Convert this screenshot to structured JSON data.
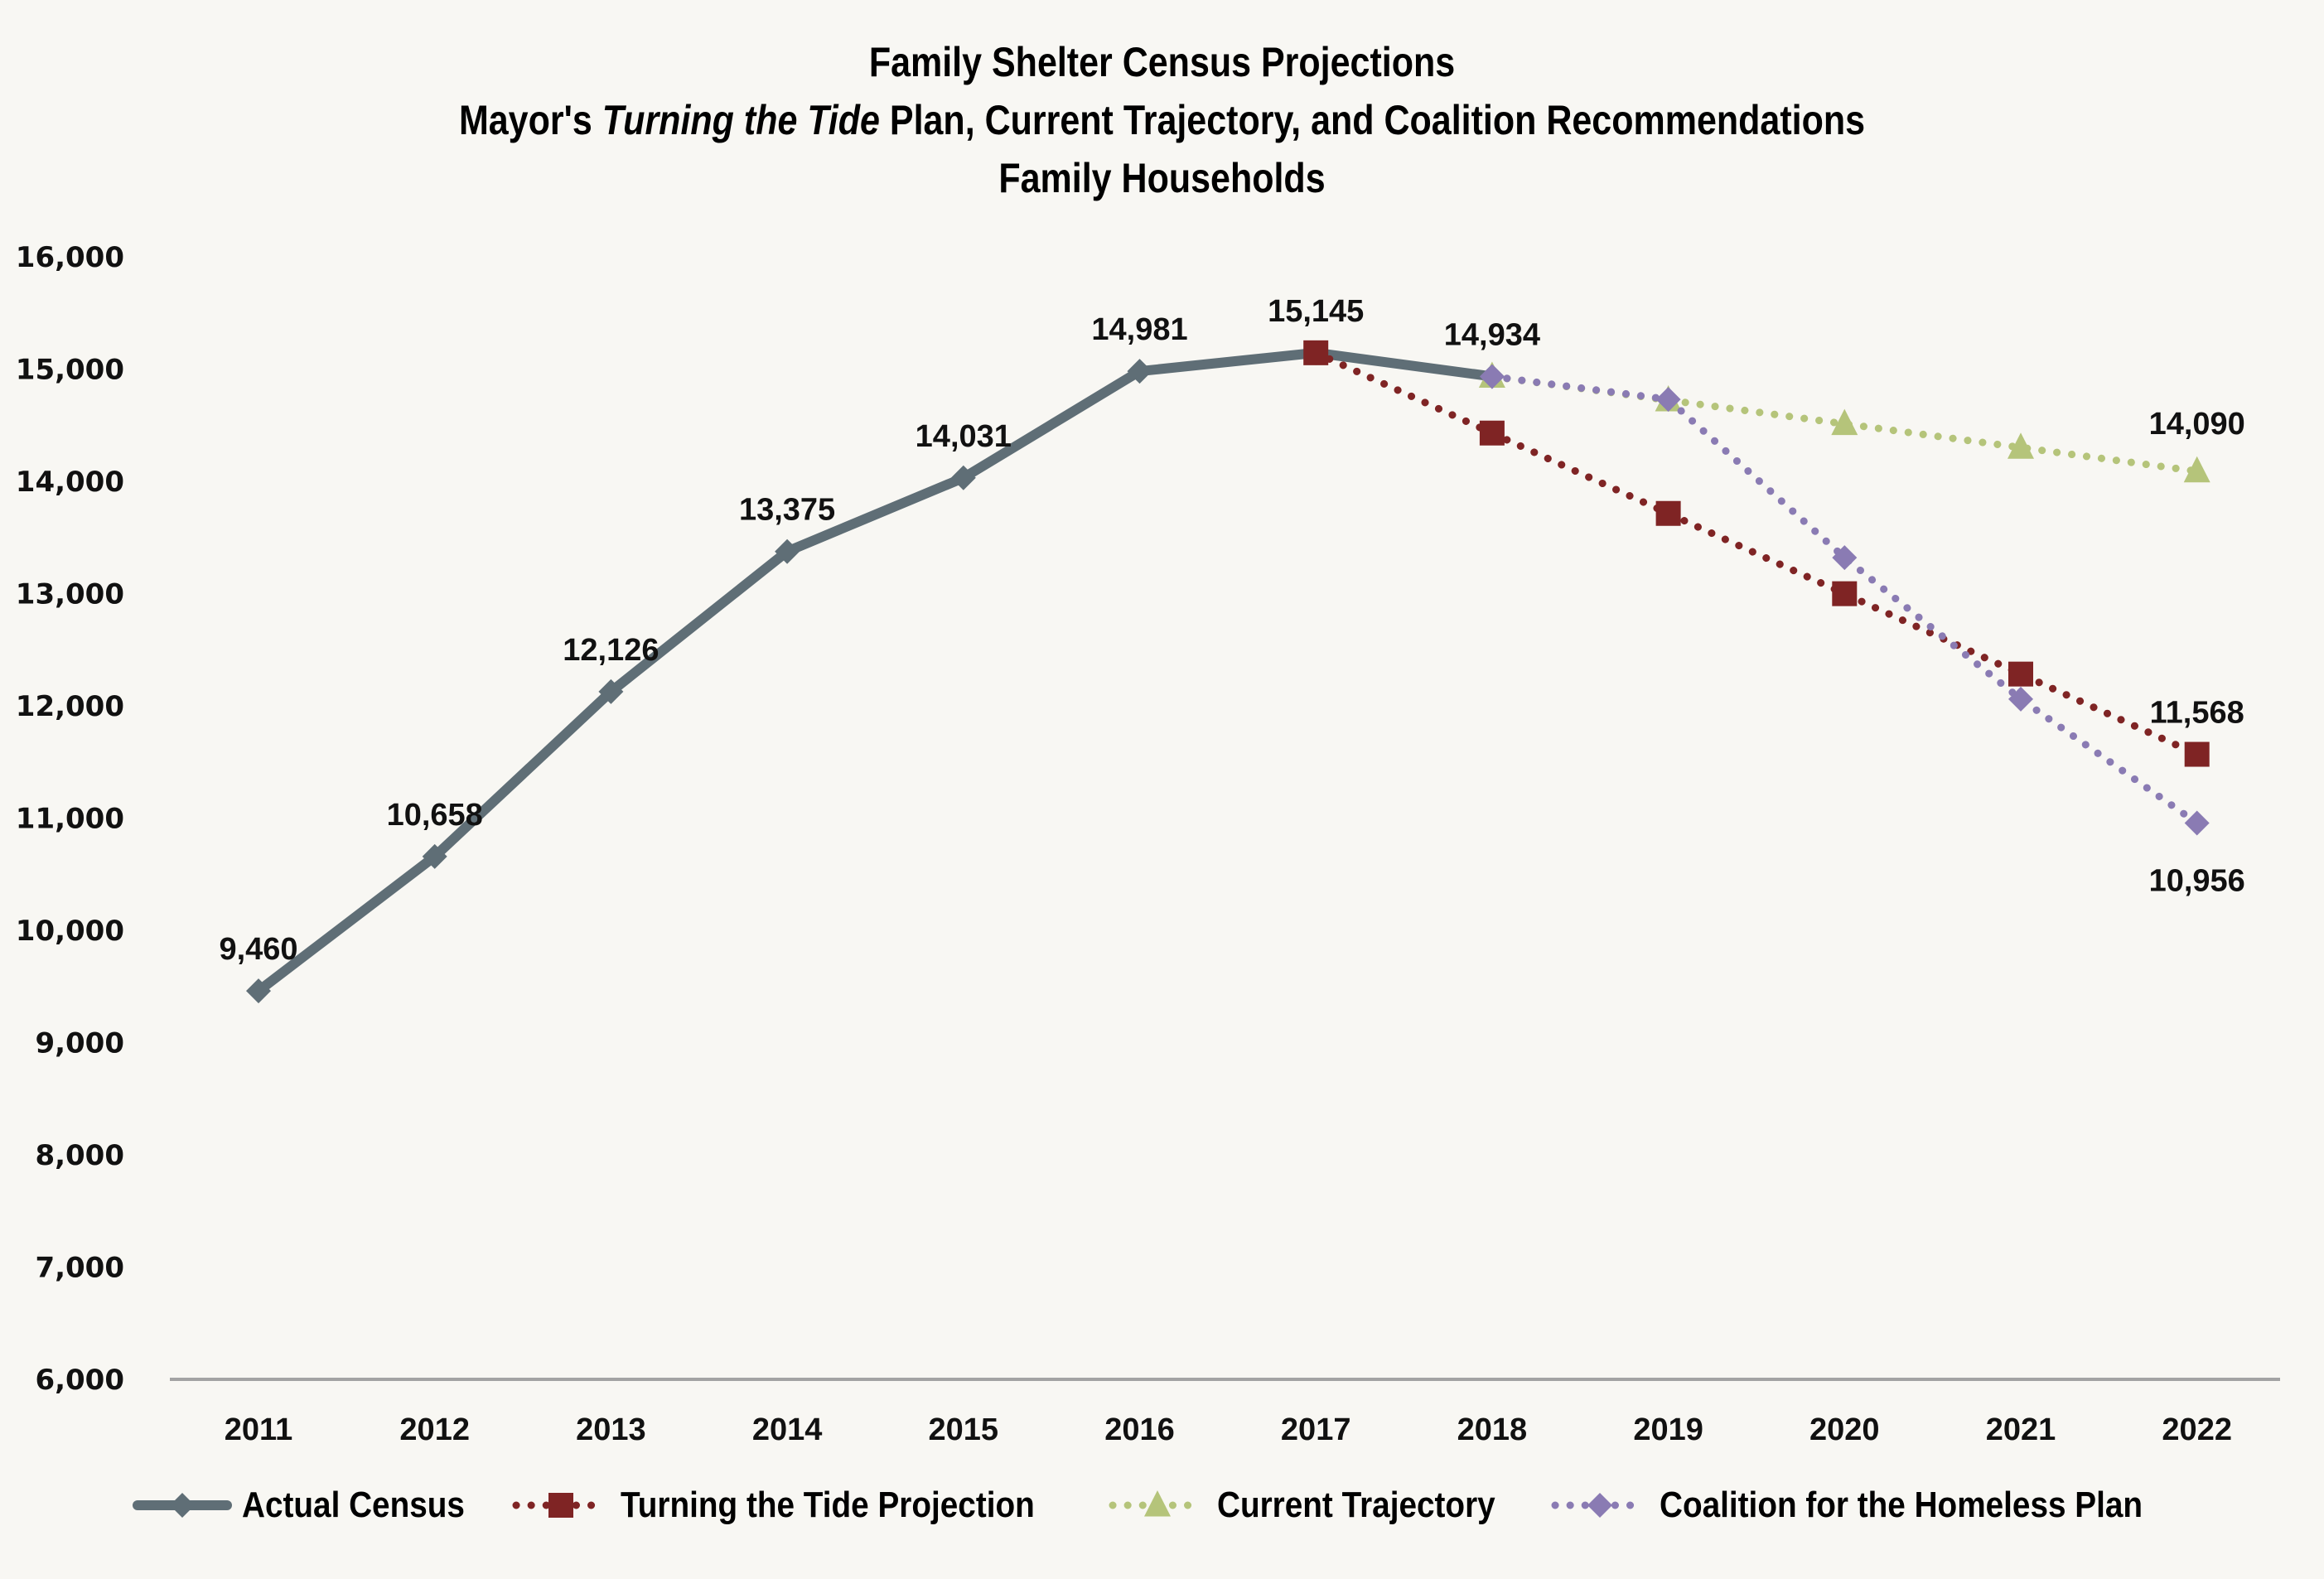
{
  "chart_data": {
    "type": "line",
    "title": "Family Shelter Census Projections",
    "subtitle_parts": {
      "before": "Mayor's ",
      "italic": "Turning the Tide",
      "after": " Plan, Current Trajectory, and Coalition Recommendations"
    },
    "subtitle2": "Family Households",
    "xlabel": "",
    "ylabel": "",
    "categories": [
      "2011",
      "2012",
      "2013",
      "2014",
      "2015",
      "2016",
      "2017",
      "2018",
      "2019",
      "2020",
      "2021",
      "2022"
    ],
    "ylim": [
      6000,
      16000
    ],
    "yticks": [
      6000,
      7000,
      8000,
      9000,
      10000,
      11000,
      12000,
      13000,
      14000,
      15000,
      16000
    ],
    "ytick_labels": [
      "6,000",
      "7,000",
      "8,000",
      "9,000",
      "10,000",
      "11,000",
      "12,000",
      "13,000",
      "14,000",
      "15,000",
      "16,000"
    ],
    "grid": false,
    "legend_position": "bottom",
    "series": [
      {
        "name": "Actual Census",
        "color": "#5f6e76",
        "style": "solid",
        "marker": "diamond",
        "values": [
          9460,
          10658,
          12126,
          13375,
          14031,
          14981,
          15145,
          14934,
          null,
          null,
          null,
          null
        ],
        "labels": [
          "9,460",
          "10,658",
          "12,126",
          "13,375",
          "14,031",
          "14,981",
          "15,145",
          "14,934",
          null,
          null,
          null,
          null
        ]
      },
      {
        "name": "Turning the Tide Projection",
        "color": "#7f2424",
        "style": "dotted",
        "marker": "square",
        "values": [
          null,
          null,
          null,
          null,
          null,
          null,
          15145,
          14430,
          13714,
          12999,
          12283,
          11568
        ],
        "labels": [
          null,
          null,
          null,
          null,
          null,
          null,
          null,
          null,
          null,
          null,
          null,
          "11,568"
        ]
      },
      {
        "name": "Current Trajectory",
        "color": "#b5c47a",
        "style": "dotted",
        "marker": "triangle",
        "values": [
          null,
          null,
          null,
          null,
          null,
          null,
          null,
          14934,
          14723,
          14512,
          14301,
          14090
        ],
        "labels": [
          null,
          null,
          null,
          null,
          null,
          null,
          null,
          null,
          null,
          null,
          null,
          "14,090"
        ]
      },
      {
        "name": "Coalition for the Homeless Plan",
        "color": "#8a7bb3",
        "style": "dotted",
        "marker": "diamond",
        "values": [
          null,
          null,
          null,
          null,
          null,
          null,
          null,
          14934,
          14730,
          13320,
          12060,
          10956
        ],
        "labels": [
          null,
          null,
          null,
          null,
          null,
          null,
          null,
          null,
          null,
          null,
          null,
          "10,956"
        ]
      }
    ]
  }
}
